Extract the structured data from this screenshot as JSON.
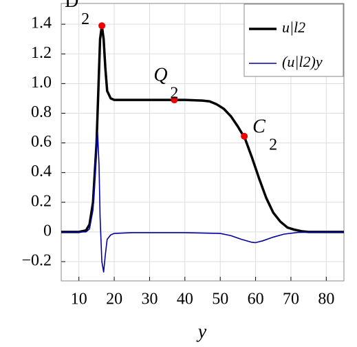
{
  "chart_data": {
    "type": "line",
    "x_label": "y",
    "xlim": [
      5,
      85
    ],
    "ylim": [
      -0.33,
      1.54
    ],
    "xticks": [
      10,
      20,
      30,
      40,
      50,
      60,
      70,
      80
    ],
    "yticks": [
      {
        "value": -0.2,
        "label": "−0.2"
      },
      0,
      0.2,
      0.4,
      0.6,
      0.8,
      {
        "value": 1.0,
        "label": "1.0"
      },
      1.2,
      1.4
    ],
    "grid": true,
    "legend": "top-right",
    "series": [
      {
        "name": "u|l2",
        "color": "#000000",
        "x": [
          5,
          10,
          12,
          13,
          14,
          15,
          15.5,
          16,
          16.5,
          17,
          17.5,
          18,
          19,
          20,
          22,
          25,
          30,
          35,
          40,
          45,
          47,
          49,
          51,
          53,
          55,
          57,
          59,
          61,
          63,
          65,
          67,
          69,
          71,
          73,
          75,
          80,
          85
        ],
        "values": [
          0,
          0,
          0.01,
          0.05,
          0.2,
          0.6,
          0.95,
          1.3,
          1.39,
          1.3,
          1.1,
          0.95,
          0.9,
          0.89,
          0.89,
          0.89,
          0.89,
          0.89,
          0.89,
          0.885,
          0.88,
          0.86,
          0.83,
          0.78,
          0.71,
          0.63,
          0.5,
          0.36,
          0.23,
          0.13,
          0.07,
          0.03,
          0.015,
          0.005,
          0,
          0,
          0
        ]
      },
      {
        "name": "(u|l2)y",
        "color": "#0000a0",
        "x": [
          5,
          12,
          13,
          14,
          14.5,
          15,
          15.3,
          15.7,
          16,
          16.5,
          17,
          17.5,
          18,
          19,
          20,
          25,
          40,
          50,
          53,
          56,
          59,
          60,
          62,
          65,
          68,
          72,
          85
        ],
        "values": [
          0,
          0,
          0.02,
          0.15,
          0.35,
          0.6,
          0.67,
          0.45,
          0.1,
          -0.2,
          -0.27,
          -0.15,
          -0.05,
          -0.02,
          -0.01,
          -0.005,
          -0.005,
          -0.01,
          -0.025,
          -0.05,
          -0.07,
          -0.072,
          -0.06,
          -0.035,
          -0.015,
          -0.003,
          0
        ]
      }
    ],
    "points": [
      {
        "label": "D",
        "sub": "2",
        "x": 16.5,
        "y": 1.39
      },
      {
        "label": "Q",
        "sub": "2",
        "x": 37,
        "y": 0.89
      },
      {
        "label": "C",
        "sub": "2",
        "x": 56.8,
        "y": 0.645
      }
    ]
  }
}
